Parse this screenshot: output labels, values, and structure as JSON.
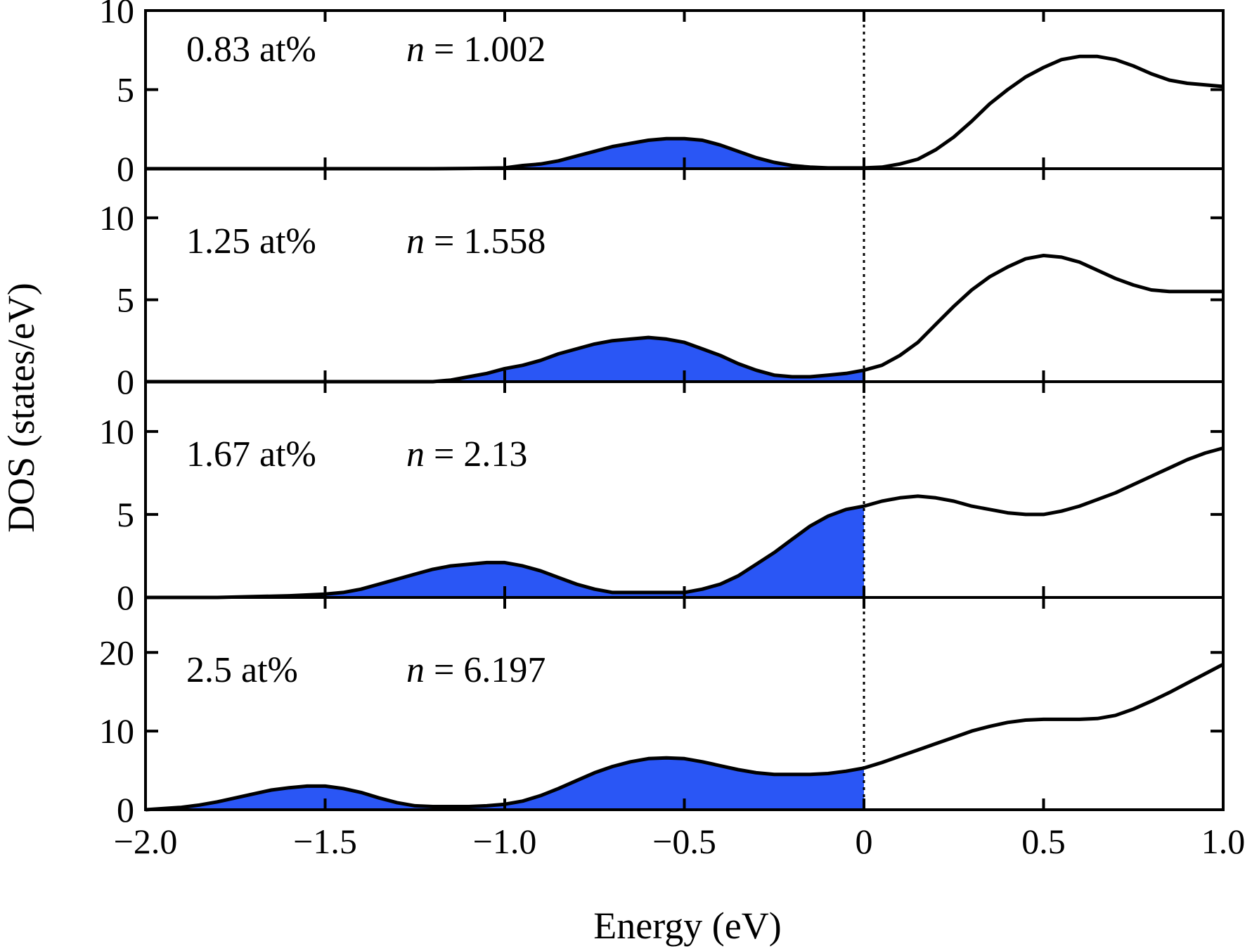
{
  "chart_data": {
    "type": "area",
    "shared_x_axis": {
      "label": "Energy (eV)",
      "range": [
        -2.0,
        1.0
      ],
      "ticks": [
        -2.0,
        -1.5,
        -1.0,
        -0.5,
        0,
        0.5,
        1.0
      ],
      "tick_labels": [
        "−2.0",
        "−1.5",
        "−1.0",
        "−0.5",
        "0",
        "0.5",
        "1.0"
      ]
    },
    "y_label": "DOS (states/eV)",
    "fermi_level": 0,
    "fermi_line_style": "dotted",
    "fill_color": "#2a56f5",
    "line_color": "#000000",
    "grid": false,
    "panels": [
      {
        "concentration": "0.83 at%",
        "n_symbol": "n",
        "n_value": "= 1.002",
        "ylim": [
          0,
          10
        ],
        "yticks": [
          0,
          5,
          10
        ],
        "ytick_labels": [
          "0",
          "5",
          "10"
        ],
        "x": [
          -2.0,
          -1.8,
          -1.6,
          -1.4,
          -1.2,
          -1.1,
          -1.0,
          -0.95,
          -0.9,
          -0.85,
          -0.8,
          -0.75,
          -0.7,
          -0.65,
          -0.6,
          -0.55,
          -0.5,
          -0.45,
          -0.4,
          -0.35,
          -0.3,
          -0.25,
          -0.2,
          -0.15,
          -0.1,
          -0.05,
          0,
          0.05,
          0.1,
          0.15,
          0.2,
          0.25,
          0.3,
          0.35,
          0.4,
          0.45,
          0.5,
          0.55,
          0.6,
          0.65,
          0.7,
          0.75,
          0.8,
          0.85,
          0.9,
          0.95,
          1.0
        ],
        "y": [
          0,
          0,
          0,
          0,
          0,
          0.02,
          0.05,
          0.2,
          0.3,
          0.5,
          0.8,
          1.1,
          1.4,
          1.6,
          1.8,
          1.9,
          1.9,
          1.8,
          1.5,
          1.1,
          0.7,
          0.4,
          0.2,
          0.1,
          0.05,
          0.05,
          0.05,
          0.1,
          0.3,
          0.6,
          1.2,
          2.0,
          3.0,
          4.1,
          5.0,
          5.8,
          6.4,
          6.9,
          7.1,
          7.1,
          6.9,
          6.5,
          6.0,
          5.6,
          5.4,
          5.3,
          5.2
        ]
      },
      {
        "concentration": "1.25 at%",
        "n_symbol": "n",
        "n_value": "= 1.558",
        "ylim": [
          0,
          13
        ],
        "yticks": [
          0,
          5,
          10
        ],
        "ytick_labels": [
          "0",
          "5",
          "10"
        ],
        "x": [
          -2.0,
          -1.8,
          -1.6,
          -1.4,
          -1.2,
          -1.15,
          -1.1,
          -1.05,
          -1.0,
          -0.95,
          -0.9,
          -0.85,
          -0.8,
          -0.75,
          -0.7,
          -0.65,
          -0.6,
          -0.55,
          -0.5,
          -0.45,
          -0.4,
          -0.35,
          -0.3,
          -0.25,
          -0.2,
          -0.15,
          -0.1,
          -0.05,
          0,
          0.05,
          0.1,
          0.15,
          0.2,
          0.25,
          0.3,
          0.35,
          0.4,
          0.45,
          0.5,
          0.55,
          0.6,
          0.65,
          0.7,
          0.75,
          0.8,
          0.85,
          0.9,
          0.95,
          1.0
        ],
        "y": [
          0,
          0,
          0,
          0,
          0,
          0.1,
          0.3,
          0.5,
          0.8,
          1.0,
          1.3,
          1.7,
          2.0,
          2.3,
          2.5,
          2.6,
          2.7,
          2.6,
          2.4,
          2.0,
          1.6,
          1.1,
          0.7,
          0.4,
          0.3,
          0.3,
          0.4,
          0.5,
          0.7,
          1.0,
          1.6,
          2.4,
          3.5,
          4.6,
          5.6,
          6.4,
          7.0,
          7.5,
          7.7,
          7.6,
          7.3,
          6.8,
          6.3,
          5.9,
          5.6,
          5.5,
          5.5,
          5.5,
          5.5
        ]
      },
      {
        "concentration": "1.67 at%",
        "n_symbol": "n",
        "n_value": "= 2.13",
        "ylim": [
          0,
          13
        ],
        "yticks": [
          0,
          5,
          10
        ],
        "ytick_labels": [
          "0",
          "5",
          "10"
        ],
        "x": [
          -2.0,
          -1.8,
          -1.7,
          -1.6,
          -1.5,
          -1.45,
          -1.4,
          -1.35,
          -1.3,
          -1.25,
          -1.2,
          -1.15,
          -1.1,
          -1.05,
          -1.0,
          -0.95,
          -0.9,
          -0.85,
          -0.8,
          -0.75,
          -0.7,
          -0.65,
          -0.6,
          -0.55,
          -0.5,
          -0.45,
          -0.4,
          -0.35,
          -0.3,
          -0.25,
          -0.2,
          -0.15,
          -0.1,
          -0.05,
          0,
          0.05,
          0.1,
          0.15,
          0.2,
          0.25,
          0.3,
          0.35,
          0.4,
          0.45,
          0.5,
          0.55,
          0.6,
          0.65,
          0.7,
          0.75,
          0.8,
          0.85,
          0.9,
          0.95,
          1.0
        ],
        "y": [
          0,
          0,
          0.05,
          0.1,
          0.2,
          0.3,
          0.5,
          0.8,
          1.1,
          1.4,
          1.7,
          1.9,
          2.0,
          2.1,
          2.1,
          1.9,
          1.6,
          1.2,
          0.8,
          0.5,
          0.3,
          0.3,
          0.3,
          0.3,
          0.3,
          0.5,
          0.8,
          1.3,
          2.0,
          2.7,
          3.5,
          4.3,
          4.9,
          5.3,
          5.5,
          5.8,
          6.0,
          6.1,
          6.0,
          5.8,
          5.5,
          5.3,
          5.1,
          5.0,
          5.0,
          5.2,
          5.5,
          5.9,
          6.3,
          6.8,
          7.3,
          7.8,
          8.3,
          8.7,
          9.0
        ]
      },
      {
        "concentration": "2.5 at%",
        "n_symbol": "n",
        "n_value": "= 6.197",
        "ylim": [
          0,
          27
        ],
        "yticks": [
          0,
          10,
          20
        ],
        "ytick_labels": [
          "0",
          "10",
          "20"
        ],
        "x": [
          -2.0,
          -1.9,
          -1.85,
          -1.8,
          -1.75,
          -1.7,
          -1.65,
          -1.6,
          -1.55,
          -1.5,
          -1.45,
          -1.4,
          -1.35,
          -1.3,
          -1.25,
          -1.2,
          -1.15,
          -1.1,
          -1.05,
          -1.0,
          -0.95,
          -0.9,
          -0.85,
          -0.8,
          -0.75,
          -0.7,
          -0.65,
          -0.6,
          -0.55,
          -0.5,
          -0.45,
          -0.4,
          -0.35,
          -0.3,
          -0.25,
          -0.2,
          -0.15,
          -0.1,
          -0.05,
          0,
          0.05,
          0.1,
          0.15,
          0.2,
          0.25,
          0.3,
          0.35,
          0.4,
          0.45,
          0.5,
          0.55,
          0.6,
          0.65,
          0.7,
          0.75,
          0.8,
          0.85,
          0.9,
          0.95,
          1.0
        ],
        "y": [
          0,
          0.3,
          0.6,
          1.0,
          1.5,
          2.0,
          2.5,
          2.8,
          3.0,
          3.0,
          2.7,
          2.2,
          1.5,
          0.9,
          0.5,
          0.4,
          0.4,
          0.4,
          0.5,
          0.7,
          1.1,
          1.8,
          2.7,
          3.7,
          4.7,
          5.5,
          6.1,
          6.5,
          6.6,
          6.5,
          6.1,
          5.6,
          5.1,
          4.7,
          4.5,
          4.5,
          4.5,
          4.6,
          4.9,
          5.3,
          6.0,
          6.8,
          7.6,
          8.4,
          9.2,
          10.0,
          10.6,
          11.1,
          11.4,
          11.5,
          11.5,
          11.5,
          11.6,
          12.0,
          12.8,
          13.8,
          14.9,
          16.1,
          17.3,
          18.5
        ]
      }
    ]
  }
}
